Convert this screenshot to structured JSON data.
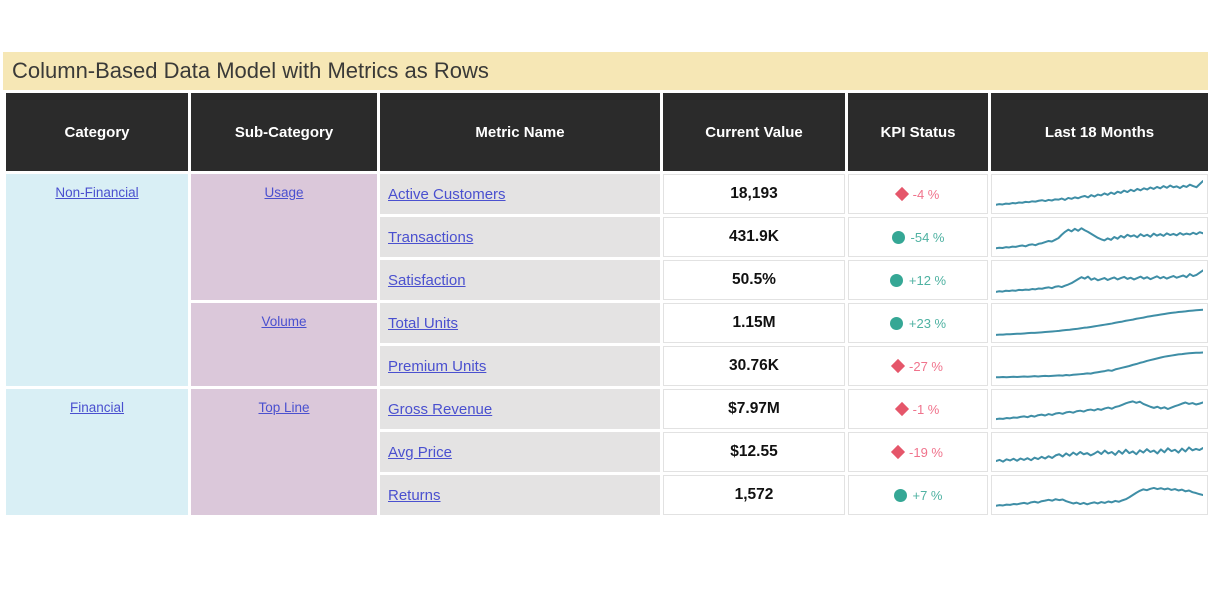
{
  "title": "Column-Based Data Model with Metrics as Rows",
  "colors": {
    "title_bg": "#F6E7B5",
    "header_bg": "#2B2B2B",
    "category_bg": "#D9EFF5",
    "subcategory_bg": "#DBC8DA",
    "metric_bg": "#E4E3E3",
    "link": "#4A50CF",
    "kpi_bad_icon": "#E5566A",
    "kpi_bad_text": "#F0738C",
    "kpi_good_icon": "#35A795",
    "kpi_good_text": "#4FB2A2",
    "sparkline": "#3F8EA6"
  },
  "table": {
    "columns": [
      "Category",
      "Sub-Category",
      "Metric Name",
      "Current Value",
      "KPI Status",
      "Last 18 Months"
    ],
    "categories": [
      {
        "label": "Non-Financial",
        "span": 5
      },
      {
        "label": "Financial",
        "span": 3
      }
    ],
    "subcategories": [
      {
        "label": "Usage",
        "span": 3
      },
      {
        "label": "Volume",
        "span": 2
      },
      {
        "label": "Top Line",
        "span": 3
      }
    ],
    "rows": [
      {
        "metric": "Active Customers",
        "value": "18,193",
        "kpi": {
          "state": "bad",
          "delta": "-4 %"
        }
      },
      {
        "metric": "Transactions",
        "value": "431.9K",
        "kpi": {
          "state": "good",
          "delta": "-54 %"
        }
      },
      {
        "metric": "Satisfaction",
        "value": "50.5%",
        "kpi": {
          "state": "good",
          "delta": "+12 %"
        }
      },
      {
        "metric": "Total Units",
        "value": "1.15M",
        "kpi": {
          "state": "good",
          "delta": "+23 %"
        }
      },
      {
        "metric": "Premium Units",
        "value": "30.76K",
        "kpi": {
          "state": "bad",
          "delta": "-27 %"
        }
      },
      {
        "metric": "Gross Revenue",
        "value": "$7.97M",
        "kpi": {
          "state": "bad",
          "delta": "-1 %"
        }
      },
      {
        "metric": "Avg Price",
        "value": "$12.55",
        "kpi": {
          "state": "bad",
          "delta": "-19 %"
        }
      },
      {
        "metric": "Returns",
        "value": "1,572",
        "kpi": {
          "state": "good",
          "delta": "+7 %"
        }
      }
    ]
  },
  "chart_data": {
    "type": "table",
    "title": "Column-Based Data Model with Metrics as Rows",
    "columns": [
      "Category",
      "Sub-Category",
      "Metric Name",
      "Current Value",
      "KPI Status",
      "Last 18 Months"
    ],
    "rows": [
      [
        "Non-Financial",
        "Usage",
        "Active Customers",
        "18,193",
        "-4 %"
      ],
      [
        "Non-Financial",
        "Usage",
        "Transactions",
        "431.9K",
        "-54 %"
      ],
      [
        "Non-Financial",
        "Usage",
        "Satisfaction",
        "50.5%",
        "+12 %"
      ],
      [
        "Non-Financial",
        "Volume",
        "Total Units",
        "1.15M",
        "+23 %"
      ],
      [
        "Non-Financial",
        "Volume",
        "Premium Units",
        "30.76K",
        "-27 %"
      ],
      [
        "Financial",
        "Top Line",
        "Gross Revenue",
        "$7.97M",
        "-1 %"
      ],
      [
        "Financial",
        "Top Line",
        "Avg Price",
        "$12.55",
        "-19 %"
      ],
      [
        "Financial",
        "Top Line",
        "Returns",
        "1,572",
        "+7 %"
      ]
    ],
    "sparklines": [
      {
        "name": "Active Customers",
        "values": [
          12,
          14,
          13,
          16,
          15,
          18,
          17,
          20,
          19,
          22,
          21,
          24,
          23,
          26,
          28,
          25,
          29,
          27,
          31,
          30,
          34,
          29,
          36,
          33,
          38,
          35,
          40,
          43,
          38,
          46,
          41,
          48,
          45,
          52,
          47,
          55,
          50,
          58,
          54,
          62,
          57,
          65,
          60,
          68,
          63,
          70,
          66,
          73,
          68,
          75,
          70,
          78,
          72,
          80,
          74,
          77,
          71,
          79,
          75,
          83,
          78,
          74,
          85,
          96
        ]
      },
      {
        "name": "Transactions",
        "values": [
          10,
          12,
          11,
          14,
          13,
          16,
          15,
          18,
          20,
          17,
          22,
          24,
          21,
          26,
          28,
          32,
          36,
          34,
          40,
          46,
          58,
          68,
          76,
          70,
          79,
          72,
          81,
          74,
          68,
          61,
          54,
          47,
          42,
          38,
          45,
          40,
          50,
          44,
          54,
          48,
          58,
          52,
          56,
          49,
          60,
          53,
          58,
          51,
          62,
          55,
          60,
          54,
          63,
          57,
          61,
          56,
          64,
          58,
          62,
          59,
          65,
          60,
          67,
          63
        ]
      },
      {
        "name": "Satisfaction",
        "values": [
          8,
          10,
          9,
          12,
          11,
          13,
          12,
          15,
          14,
          16,
          15,
          18,
          17,
          20,
          19,
          22,
          24,
          21,
          26,
          28,
          25,
          30,
          34,
          39,
          46,
          53,
          60,
          55,
          62,
          51,
          56,
          49,
          53,
          57,
          50,
          55,
          59,
          52,
          57,
          61,
          54,
          58,
          52,
          57,
          62,
          55,
          60,
          53,
          58,
          63,
          56,
          61,
          55,
          60,
          64,
          58,
          62,
          66,
          60,
          71,
          64,
          68,
          76,
          84
        ]
      },
      {
        "name": "Total Units",
        "values": [
          8,
          9,
          9,
          10,
          10,
          11,
          12,
          12,
          13,
          14,
          15,
          15,
          16,
          17,
          18,
          19,
          20,
          21,
          22,
          24,
          25,
          26,
          28,
          29,
          31,
          33,
          34,
          36,
          38,
          40,
          42,
          44,
          46,
          48,
          51,
          53,
          55,
          58,
          60,
          62,
          65,
          67,
          69,
          72,
          74,
          76,
          78,
          80,
          82,
          84,
          86,
          87,
          89,
          90,
          91,
          93,
          94,
          95,
          96,
          97
        ]
      },
      {
        "name": "Premium Units",
        "values": [
          10,
          10,
          11,
          10,
          11,
          12,
          11,
          12,
          13,
          12,
          13,
          14,
          13,
          14,
          15,
          14,
          15,
          16,
          17,
          16,
          18,
          17,
          19,
          20,
          21,
          22,
          24,
          23,
          26,
          28,
          30,
          32,
          35,
          33,
          38,
          41,
          44,
          47,
          50,
          54,
          57,
          61,
          64,
          68,
          71,
          74,
          77,
          80,
          83,
          85,
          87,
          89,
          91,
          92,
          94,
          95,
          96,
          97,
          97,
          98
        ]
      },
      {
        "name": "Gross Revenue",
        "values": [
          14,
          16,
          15,
          18,
          17,
          20,
          19,
          22,
          24,
          21,
          26,
          23,
          28,
          30,
          27,
          32,
          29,
          34,
          36,
          33,
          38,
          40,
          37,
          42,
          44,
          41,
          46,
          48,
          45,
          50,
          47,
          52,
          55,
          51,
          57,
          60,
          65,
          70,
          74,
          77,
          72,
          76,
          68,
          63,
          58,
          54,
          58,
          52,
          56,
          50,
          55,
          60,
          64,
          69,
          73,
          68,
          71,
          66,
          69,
          73
        ]
      },
      {
        "name": "Avg Price",
        "values": [
          18,
          22,
          16,
          24,
          20,
          26,
          19,
          27,
          22,
          28,
          21,
          30,
          25,
          33,
          27,
          35,
          29,
          38,
          42,
          34,
          45,
          37,
          48,
          40,
          50,
          42,
          46,
          38,
          44,
          52,
          43,
          55,
          45,
          50,
          40,
          54,
          44,
          58,
          46,
          52,
          42,
          56,
          48,
          60,
          50,
          55,
          45,
          59,
          49,
          63,
          53,
          58,
          48,
          62,
          52,
          66,
          56,
          61,
          57,
          64
        ]
      },
      {
        "name": "Returns",
        "values": [
          12,
          14,
          13,
          16,
          15,
          18,
          17,
          20,
          22,
          19,
          24,
          26,
          23,
          28,
          30,
          33,
          30,
          35,
          32,
          34,
          28,
          24,
          20,
          23,
          18,
          22,
          17,
          21,
          24,
          20,
          25,
          22,
          27,
          24,
          29,
          26,
          31,
          35,
          42,
          50,
          58,
          65,
          70,
          67,
          72,
          75,
          71,
          74,
          70,
          73,
          68,
          71,
          66,
          69,
          63,
          66,
          60,
          57,
          53,
          50
        ]
      }
    ]
  }
}
